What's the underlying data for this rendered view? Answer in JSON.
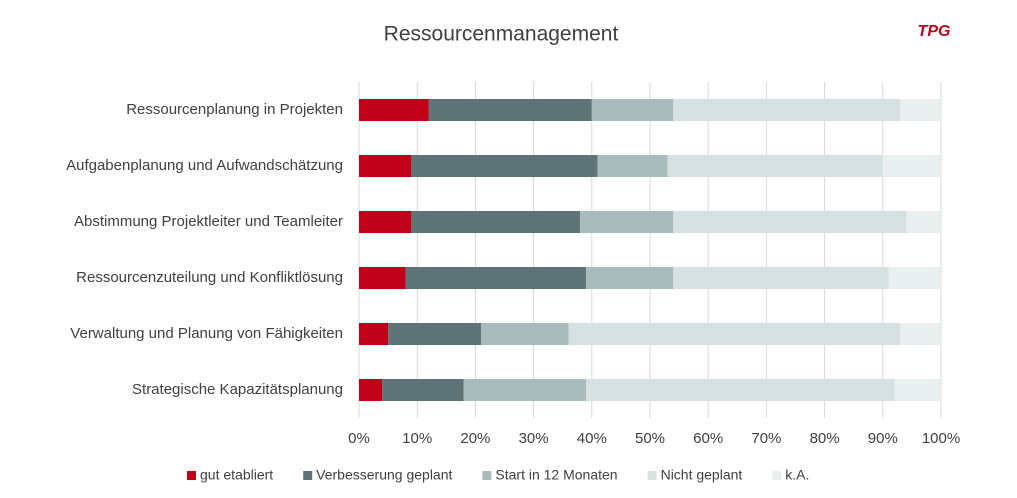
{
  "logo": "TPG",
  "chart_data": {
    "type": "stacked-barh",
    "title": "Ressourcenmanagement",
    "categories": [
      "Ressourcenplanung in Projekten",
      "Aufgabenplanung und Aufwandschätzung",
      "Abstimmung Projektleiter und Teamleiter",
      "Ressourcenzuteilung und Konfliktlösung",
      "Verwaltung und Planung von Fähigkeiten",
      "Strategische Kapazitätsplanung"
    ],
    "series": [
      {
        "name": "gut etabliert",
        "color": "#c0001a",
        "values": [
          12,
          9,
          9,
          8,
          5,
          4
        ]
      },
      {
        "name": "Verbesserung geplant",
        "color": "#5f7476",
        "values": [
          28,
          32,
          29,
          31,
          16,
          14
        ]
      },
      {
        "name": "Start in 12 Monaten",
        "color": "#aabbbe",
        "values": [
          14,
          12,
          16,
          15,
          15,
          21
        ]
      },
      {
        "name": "Nicht geplant",
        "color": "#d5e0e1",
        "values": [
          39,
          37,
          40,
          37,
          57,
          53
        ]
      },
      {
        "name": "k.A.",
        "color": "#e9eeef",
        "values": [
          7,
          10,
          6,
          9,
          7,
          8
        ]
      }
    ],
    "xlim": [
      0,
      100
    ],
    "xticks": [
      {
        "value": 0,
        "label": "0%"
      },
      {
        "value": 10,
        "label": "10%"
      },
      {
        "value": 20,
        "label": "20%"
      },
      {
        "value": 30,
        "label": "30%"
      },
      {
        "value": 40,
        "label": "40%"
      },
      {
        "value": 50,
        "label": "50%"
      },
      {
        "value": 60,
        "label": "60%"
      },
      {
        "value": 70,
        "label": "70%"
      },
      {
        "value": 80,
        "label": "80%"
      },
      {
        "value": 90,
        "label": "90%"
      },
      {
        "value": 100,
        "label": "100%"
      }
    ],
    "grid": true,
    "legend": "bottom"
  }
}
